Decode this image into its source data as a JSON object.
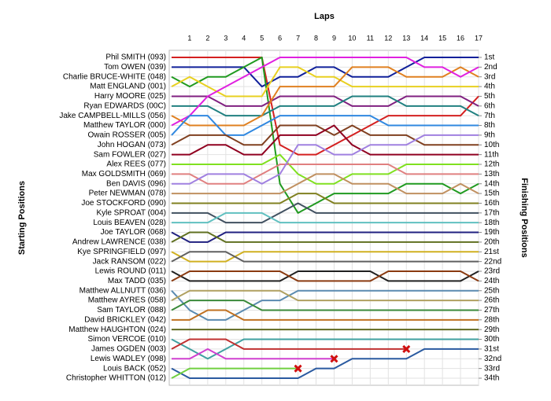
{
  "chart_data": {
    "type": "lap-chart",
    "title": "Laps",
    "y_label": "Starting Positions",
    "y2_label": "Finishing Positions",
    "x": [
      0,
      1,
      2,
      3,
      4,
      5,
      6,
      7,
      8,
      9,
      10,
      11,
      12,
      13,
      14,
      15,
      16,
      17
    ],
    "xlim": [
      0,
      17
    ],
    "xticks": [
      1,
      2,
      3,
      4,
      5,
      6,
      7,
      8,
      9,
      10,
      11,
      12,
      13,
      14,
      15,
      16,
      17
    ],
    "ylim": [
      1,
      34
    ],
    "y_inverted": true,
    "grid": true,
    "y2lim": [
      1,
      34
    ],
    "y2ticks": [
      {
        "value": 1,
        "label": "1st"
      },
      {
        "value": 2,
        "label": "2nd"
      },
      {
        "value": 3,
        "label": "3rd"
      },
      {
        "value": 4,
        "label": "4th"
      },
      {
        "value": 5,
        "label": "5th"
      },
      {
        "value": 6,
        "label": "6th"
      },
      {
        "value": 7,
        "label": "7th"
      },
      {
        "value": 8,
        "label": "8th"
      },
      {
        "value": 9,
        "label": "9th"
      },
      {
        "value": 10,
        "label": "10th"
      },
      {
        "value": 11,
        "label": "11th"
      },
      {
        "value": 12,
        "label": "12th"
      },
      {
        "value": 13,
        "label": "13th"
      },
      {
        "value": 14,
        "label": "14th"
      },
      {
        "value": 15,
        "label": "15th"
      },
      {
        "value": 16,
        "label": "16th"
      },
      {
        "value": 17,
        "label": "17th"
      },
      {
        "value": 18,
        "label": "18th"
      },
      {
        "value": 19,
        "label": "19th"
      },
      {
        "value": 20,
        "label": "20th"
      },
      {
        "value": 21,
        "label": "21st"
      },
      {
        "value": 22,
        "label": "22nd"
      },
      {
        "value": 23,
        "label": "23rd"
      },
      {
        "value": 24,
        "label": "24th"
      },
      {
        "value": 25,
        "label": "25th"
      },
      {
        "value": 26,
        "label": "26th"
      },
      {
        "value": 27,
        "label": "27th"
      },
      {
        "value": 28,
        "label": "28th"
      },
      {
        "value": 29,
        "label": "29th"
      },
      {
        "value": 30,
        "label": "30th"
      },
      {
        "value": 31,
        "label": "31st"
      },
      {
        "value": 32,
        "label": "32nd"
      },
      {
        "value": 33,
        "label": "33rd"
      },
      {
        "value": 34,
        "label": "34th"
      }
    ],
    "series": [
      {
        "name": "Phil SMITH (093)",
        "color": "#d42020",
        "values": [
          1,
          1,
          1,
          1,
          1,
          1,
          10,
          11,
          11,
          10,
          9,
          8,
          7,
          7,
          7,
          7,
          7,
          5
        ]
      },
      {
        "name": "Tom OWEN (039)",
        "color": "#10209a",
        "values": [
          2,
          2,
          2,
          2,
          2,
          4,
          3,
          3,
          2,
          2,
          3,
          3,
          3,
          2,
          1,
          1,
          1,
          1
        ]
      },
      {
        "name": "Charlie BRUCE-WHITE (048)",
        "color": "#209a20",
        "values": [
          3,
          4,
          3,
          3,
          2,
          1,
          14,
          17,
          16,
          15,
          15,
          15,
          15,
          14,
          14,
          14,
          15,
          14
        ]
      },
      {
        "name": "Matt ENGLAND (001)",
        "color": "#e8d020",
        "values": [
          4,
          3,
          4,
          5,
          5,
          5,
          2,
          2,
          3,
          3,
          4,
          4,
          4,
          4,
          4,
          4,
          4,
          4
        ]
      },
      {
        "name": "Harry MOORE (025)",
        "color": "#802080",
        "values": [
          5,
          5,
          5,
          6,
          6,
          6,
          5,
          5,
          5,
          5,
          6,
          6,
          6,
          5,
          5,
          5,
          5,
          6
        ]
      },
      {
        "name": "Ryan EDWARDS (00C)",
        "color": "#208080",
        "values": [
          6,
          6,
          6,
          7,
          7,
          7,
          6,
          6,
          6,
          6,
          5,
          5,
          5,
          6,
          6,
          6,
          6,
          7
        ]
      },
      {
        "name": "Jake CAMPBELL-MILLS (056)",
        "color": "#e08020",
        "values": [
          7,
          8,
          8,
          8,
          8,
          7,
          4,
          4,
          4,
          4,
          2,
          2,
          2,
          3,
          3,
          3,
          2,
          3
        ]
      },
      {
        "name": "Matthew TAYLOR (000)",
        "color": "#e020e0",
        "values": [
          8,
          7,
          5,
          4,
          3,
          2,
          1,
          1,
          1,
          1,
          1,
          1,
          1,
          1,
          2,
          2,
          3,
          2
        ]
      },
      {
        "name": "Owain ROSSER (005)",
        "color": "#3088e0",
        "values": [
          9,
          7,
          7,
          9,
          9,
          8,
          7,
          7,
          7,
          7,
          7,
          7,
          8,
          8,
          8,
          8,
          8,
          8
        ]
      },
      {
        "name": "John HOGAN (073)",
        "color": "#804020",
        "values": [
          10,
          9,
          9,
          9,
          10,
          10,
          8,
          8,
          8,
          9,
          8,
          9,
          9,
          9,
          10,
          10,
          10,
          10
        ]
      },
      {
        "name": "Sam FOWLER (027)",
        "color": "#900020",
        "values": [
          11,
          11,
          10,
          10,
          11,
          11,
          9,
          9,
          9,
          8,
          10,
          11,
          11,
          11,
          11,
          11,
          11,
          11
        ]
      },
      {
        "name": "Alex REES (077)",
        "color": "#80e020",
        "values": [
          12,
          12,
          12,
          12,
          12,
          12,
          11,
          13,
          14,
          14,
          13,
          13,
          13,
          12,
          12,
          12,
          12,
          12
        ]
      },
      {
        "name": "Max GOLDSMITH (069)",
        "color": "#e08080",
        "values": [
          13,
          13,
          14,
          14,
          14,
          13,
          12,
          12,
          12,
          12,
          12,
          12,
          12,
          13,
          13,
          13,
          13,
          13
        ]
      },
      {
        "name": "Ben DAVIS (096)",
        "color": "#a080e0",
        "values": [
          14,
          14,
          13,
          13,
          13,
          14,
          13,
          10,
          10,
          11,
          11,
          10,
          10,
          10,
          9,
          9,
          9,
          9
        ]
      },
      {
        "name": "Peter NEWMAN (078)",
        "color": "#c09060",
        "values": [
          15,
          15,
          15,
          15,
          15,
          15,
          15,
          14,
          13,
          13,
          14,
          14,
          14,
          15,
          15,
          15,
          14,
          15
        ]
      },
      {
        "name": "Joe STOCKFORD (090)",
        "color": "#808020",
        "values": [
          16,
          16,
          16,
          16,
          16,
          16,
          16,
          15,
          15,
          16,
          16,
          16,
          16,
          16,
          16,
          16,
          16,
          16
        ]
      },
      {
        "name": "Kyle SPROAT (004)",
        "color": "#405060",
        "values": [
          17,
          17,
          17,
          18,
          18,
          18,
          17,
          16,
          17,
          17,
          17,
          17,
          17,
          17,
          17,
          17,
          17,
          17
        ]
      },
      {
        "name": "Louis BEAVEN (028)",
        "color": "#60c0c0",
        "values": [
          18,
          18,
          18,
          17,
          17,
          17,
          18,
          18,
          18,
          18,
          18,
          18,
          18,
          18,
          18,
          18,
          18,
          18
        ]
      },
      {
        "name": "Joe TAYLOR (068)",
        "color": "#202080",
        "values": [
          19,
          20,
          20,
          19,
          19,
          19,
          19,
          19,
          19,
          19,
          19,
          19,
          19,
          19,
          19,
          19,
          19,
          19
        ]
      },
      {
        "name": "Andrew LAWRENCE (038)",
        "color": "#607020",
        "values": [
          20,
          19,
          19,
          20,
          20,
          20,
          20,
          20,
          20,
          20,
          20,
          20,
          20,
          20,
          20,
          20,
          20,
          20
        ]
      },
      {
        "name": "Kye SPRINGFIELD (097)",
        "color": "#d0b020",
        "values": [
          21,
          22,
          22,
          22,
          21,
          21,
          21,
          21,
          21,
          21,
          21,
          21,
          21,
          21,
          21,
          21,
          21,
          21
        ]
      },
      {
        "name": "Jack RANSOM (022)",
        "color": "#606060",
        "values": [
          22,
          21,
          21,
          21,
          22,
          22,
          22,
          22,
          22,
          22,
          22,
          22,
          22,
          22,
          22,
          22,
          22,
          22
        ]
      },
      {
        "name": "Lewis ROUND (011)",
        "color": "#202020",
        "values": [
          23,
          24,
          24,
          24,
          24,
          24,
          24,
          23,
          23,
          23,
          23,
          23,
          24,
          24,
          24,
          24,
          24,
          23
        ]
      },
      {
        "name": "Max TADD (035)",
        "color": "#8a3a10",
        "values": [
          24,
          23,
          23,
          23,
          23,
          23,
          23,
          24,
          24,
          24,
          24,
          24,
          23,
          23,
          23,
          23,
          23,
          24
        ]
      },
      {
        "name": "Matthew ALLNUTT (036)",
        "color": "#5a8ab0",
        "values": [
          25,
          27,
          28,
          28,
          27,
          26,
          26,
          25,
          25,
          25,
          25,
          25,
          25,
          25,
          25,
          25,
          25,
          25
        ]
      },
      {
        "name": "Matthew AYRES (058)",
        "color": "#b0a060",
        "values": [
          26,
          25,
          25,
          25,
          25,
          25,
          25,
          26,
          26,
          26,
          26,
          26,
          26,
          26,
          26,
          26,
          26,
          26
        ]
      },
      {
        "name": "Sam TAYLOR (088)",
        "color": "#3a8a3a",
        "values": [
          27,
          26,
          26,
          26,
          26,
          27,
          27,
          27,
          27,
          27,
          27,
          27,
          27,
          27,
          27,
          27,
          27,
          27
        ]
      },
      {
        "name": "David BRICKLEY (042)",
        "color": "#c07020",
        "values": [
          28,
          28,
          27,
          27,
          28,
          28,
          28,
          28,
          28,
          28,
          28,
          28,
          28,
          28,
          28,
          28,
          28,
          28
        ]
      },
      {
        "name": "Matthew HAUGHTON (024)",
        "color": "#606a20",
        "values": [
          29,
          29,
          29,
          29,
          29,
          29,
          29,
          29,
          29,
          29,
          29,
          29,
          29,
          29,
          29,
          29,
          29,
          29
        ]
      },
      {
        "name": "Simon VERCOE (010)",
        "color": "#40a0a0",
        "values": [
          30,
          31,
          32,
          31,
          30,
          30,
          30,
          30,
          30,
          30,
          30,
          30,
          30,
          30,
          30,
          30,
          30,
          30
        ]
      },
      {
        "name": "James OGDEN (003)",
        "color": "#c03030",
        "values": [
          31,
          30,
          30,
          30,
          31,
          31,
          31,
          31,
          31,
          31,
          31,
          31,
          31,
          31,
          null,
          null,
          null,
          null
        ]
      },
      {
        "name": "Lewis WADLEY (098)",
        "color": "#d040d0",
        "values": [
          32,
          32,
          31,
          32,
          32,
          32,
          32,
          32,
          32,
          32,
          null,
          null,
          null,
          null,
          null,
          null,
          null,
          null
        ]
      },
      {
        "name": "Louis BACK (052)",
        "color": "#2a5aa0",
        "values": [
          33,
          34,
          34,
          34,
          34,
          34,
          34,
          34,
          33,
          33,
          32,
          32,
          32,
          32,
          31,
          31,
          31,
          31
        ]
      },
      {
        "name": "Christopher WHITTON (012)",
        "color": "#70d040",
        "values": [
          34,
          33,
          33,
          33,
          33,
          33,
          33,
          33,
          null,
          null,
          null,
          null,
          null,
          null,
          null,
          null,
          null,
          null
        ]
      }
    ]
  }
}
